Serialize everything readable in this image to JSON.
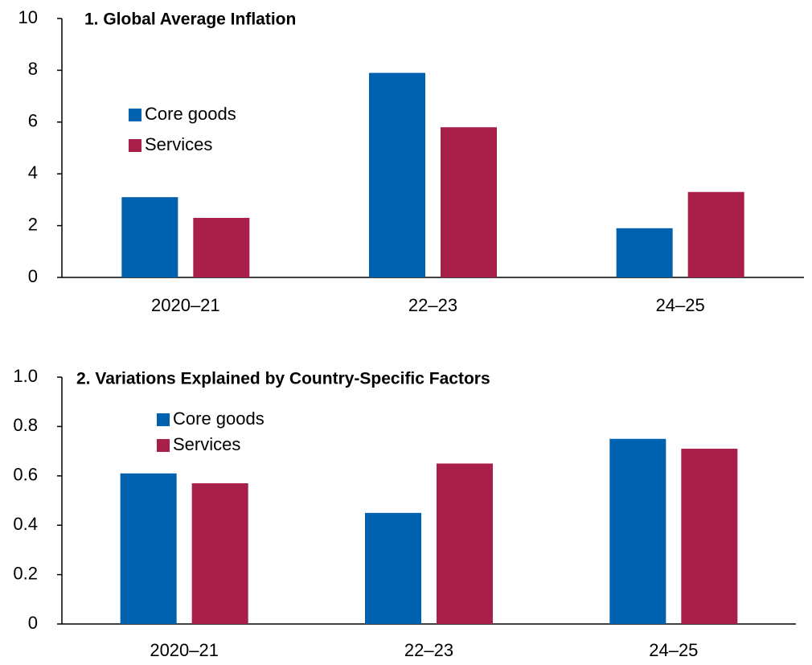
{
  "chart_data": [
    {
      "type": "bar",
      "title": "1. Global Average Inflation",
      "categories": [
        "2020–21",
        "22–23",
        "24–25"
      ],
      "series": [
        {
          "name": "Core goods",
          "color": "#0061ae",
          "values": [
            3.1,
            7.9,
            1.9
          ]
        },
        {
          "name": "Services",
          "color": "#a8204a",
          "values": [
            2.3,
            5.8,
            3.3
          ]
        }
      ],
      "ylim": [
        0,
        10
      ],
      "yticks": [
        0,
        2,
        4,
        6,
        8,
        10
      ],
      "grid": false
    },
    {
      "type": "bar",
      "title": "2. Variations Explained by Country-Specific Factors",
      "categories": [
        "2020–21",
        "22–23",
        "24–25"
      ],
      "series": [
        {
          "name": "Core goods",
          "color": "#0061ae",
          "values": [
            0.61,
            0.45,
            0.75
          ]
        },
        {
          "name": "Services",
          "color": "#a8204a",
          "values": [
            0.57,
            0.65,
            0.71
          ]
        }
      ],
      "ylim": [
        0,
        1.0
      ],
      "yticks": [
        0,
        {
          "value": 0.2,
          "label": "0.2"
        },
        {
          "value": 0.4,
          "label": "0.4"
        },
        {
          "value": 0.6,
          "label": "0.6"
        },
        {
          "value": 0.8,
          "label": "0.8"
        },
        {
          "value": 1.0,
          "label": "1.0"
        }
      ],
      "grid": false
    }
  ]
}
